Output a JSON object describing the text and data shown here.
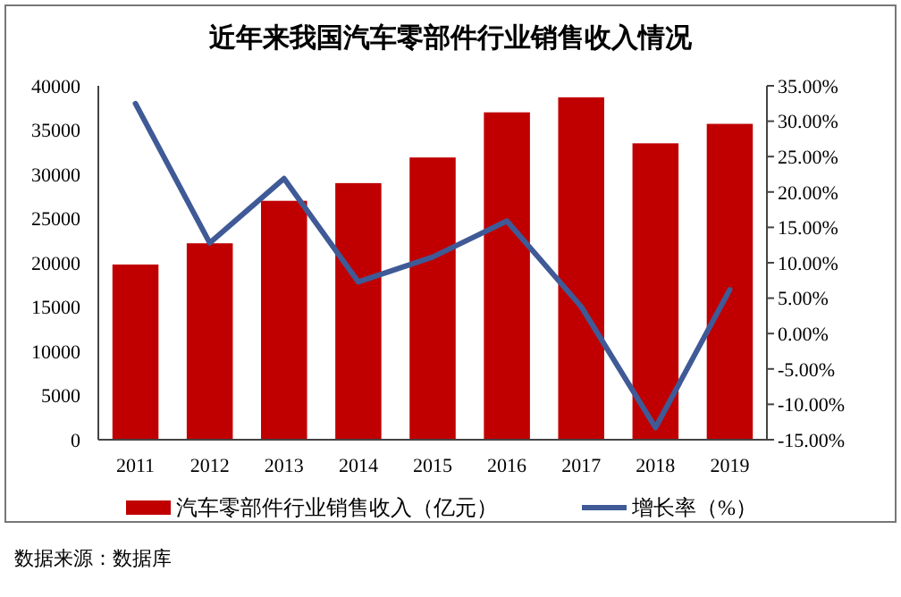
{
  "chart_data": {
    "type": "bar",
    "title": "近年来我国汽车零部件行业销售收入情况",
    "categories": [
      "2011",
      "2012",
      "2013",
      "2014",
      "2015",
      "2016",
      "2017",
      "2018",
      "2019"
    ],
    "series": [
      {
        "name": "汽车零部件行业销售收入（亿元）",
        "color": "#c00000",
        "values": [
          19800,
          22200,
          27000,
          29000,
          31900,
          37000,
          38700,
          33500,
          35700
        ]
      },
      {
        "name": "增长率（%）",
        "type": "line",
        "axis": "y2",
        "color": "#3f5a96",
        "values": [
          32.5,
          12.8,
          21.9,
          7.3,
          10.8,
          15.9,
          3.8,
          -13.3,
          6.2
        ]
      }
    ],
    "ylim": [
      0,
      40000
    ],
    "yticks": [
      0,
      5000,
      10000,
      15000,
      20000,
      25000,
      30000,
      35000,
      40000
    ],
    "y2lim": [
      -15,
      35
    ],
    "y2ticks": [
      {
        "value": -15,
        "label": "-15.00%"
      },
      {
        "value": -10,
        "label": "-10.00%"
      },
      {
        "value": -5,
        "label": "-5.00%"
      },
      {
        "value": 0,
        "label": "0.00%"
      },
      {
        "value": 5,
        "label": "5.00%"
      },
      {
        "value": 10,
        "label": "10.00%"
      },
      {
        "value": 15,
        "label": "15.00%"
      },
      {
        "value": 20,
        "label": "20.00%"
      },
      {
        "value": 25,
        "label": "25.00%"
      },
      {
        "value": 30,
        "label": "30.00%"
      },
      {
        "value": 35,
        "label": "35.00%"
      }
    ],
    "legend": "bottom",
    "grid": false,
    "annotations": [
      "数据来源：数据库"
    ]
  }
}
